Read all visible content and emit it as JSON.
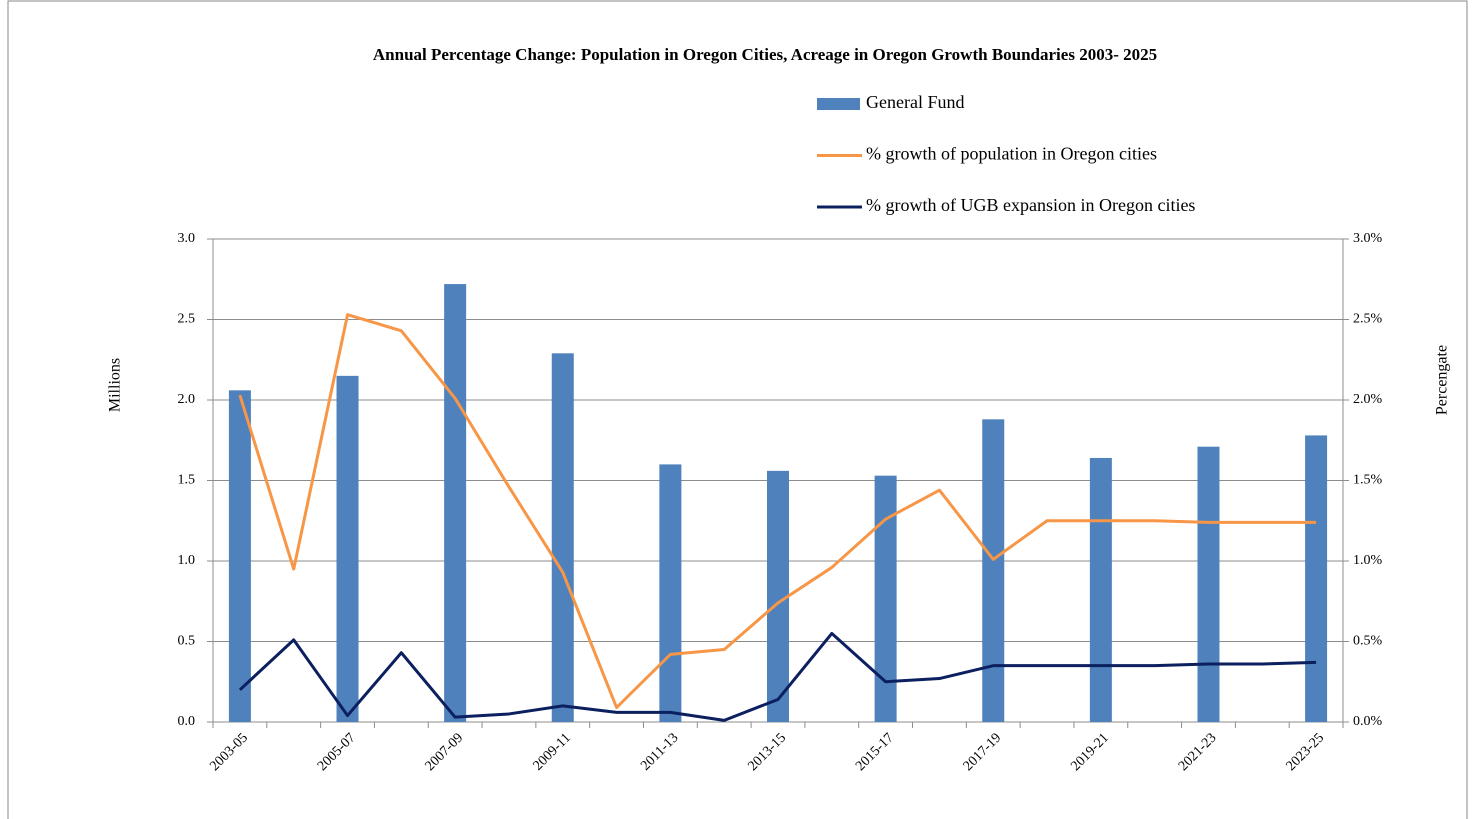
{
  "chart_data": {
    "type": "bar_line",
    "title": "Annual Percentage Change:  Population in Oregon Cities, Acreage in Oregon Growth Boundaries 2003- 2025",
    "ylabel": "Millions",
    "y2label": "Percengate",
    "categories": [
      "2003-05",
      null,
      "2005-07",
      null,
      "2007-09",
      null,
      "2009-11",
      null,
      "2011-13",
      null,
      "2013-15",
      null,
      "2015-17",
      null,
      "2017-19",
      null,
      "2019-21",
      null,
      "2021-23",
      null,
      "2023-25"
    ],
    "series": [
      {
        "name": "General Fund",
        "type": "bar",
        "axis": "y",
        "color": "#4f81bd",
        "values": [
          2.06,
          null,
          2.15,
          null,
          2.72,
          null,
          2.29,
          null,
          1.6,
          null,
          1.56,
          null,
          1.53,
          null,
          1.88,
          null,
          1.64,
          null,
          1.71,
          null,
          1.78
        ]
      },
      {
        "name": "% growth of population in Oregon cities",
        "type": "line",
        "axis": "y2",
        "color": "#f79646",
        "values": [
          2.03,
          0.95,
          2.53,
          2.43,
          2.01,
          1.46,
          0.93,
          0.09,
          0.42,
          0.45,
          0.74,
          0.96,
          1.26,
          1.44,
          1.01,
          1.25,
          1.25,
          1.25,
          1.24,
          1.24,
          1.24
        ]
      },
      {
        "name": "% growth of UGB expansion in Oregon cities",
        "type": "line",
        "axis": "y2",
        "color": "#0c1f5e",
        "values": [
          0.2,
          0.51,
          0.04,
          0.43,
          0.03,
          0.05,
          0.1,
          0.06,
          0.06,
          0.01,
          0.14,
          0.55,
          0.25,
          0.27,
          0.35,
          0.35,
          0.35,
          0.35,
          0.36,
          0.36,
          0.37
        ]
      }
    ],
    "ylim": [
      0,
      3
    ],
    "yticks": [
      {
        "value": 0,
        "label": "0.0"
      },
      {
        "value": 0.5,
        "label": "0.5"
      },
      {
        "value": 1,
        "label": "1.0"
      },
      {
        "value": 1.5,
        "label": "1.5"
      },
      {
        "value": 2,
        "label": "2.0"
      },
      {
        "value": 2.5,
        "label": "2.5"
      },
      {
        "value": 3,
        "label": "3.0"
      }
    ],
    "y2lim": [
      0,
      3
    ],
    "y2ticks": [
      {
        "value": 0,
        "label": "0.0%"
      },
      {
        "value": 0.5,
        "label": "0.5%"
      },
      {
        "value": 1,
        "label": "1.0%"
      },
      {
        "value": 1.5,
        "label": "1.5%"
      },
      {
        "value": 2,
        "label": "2.0%"
      },
      {
        "value": 2.5,
        "label": "2.5%"
      },
      {
        "value": 3,
        "label": "3.0%"
      }
    ],
    "grid": true,
    "legend": "top-right"
  }
}
